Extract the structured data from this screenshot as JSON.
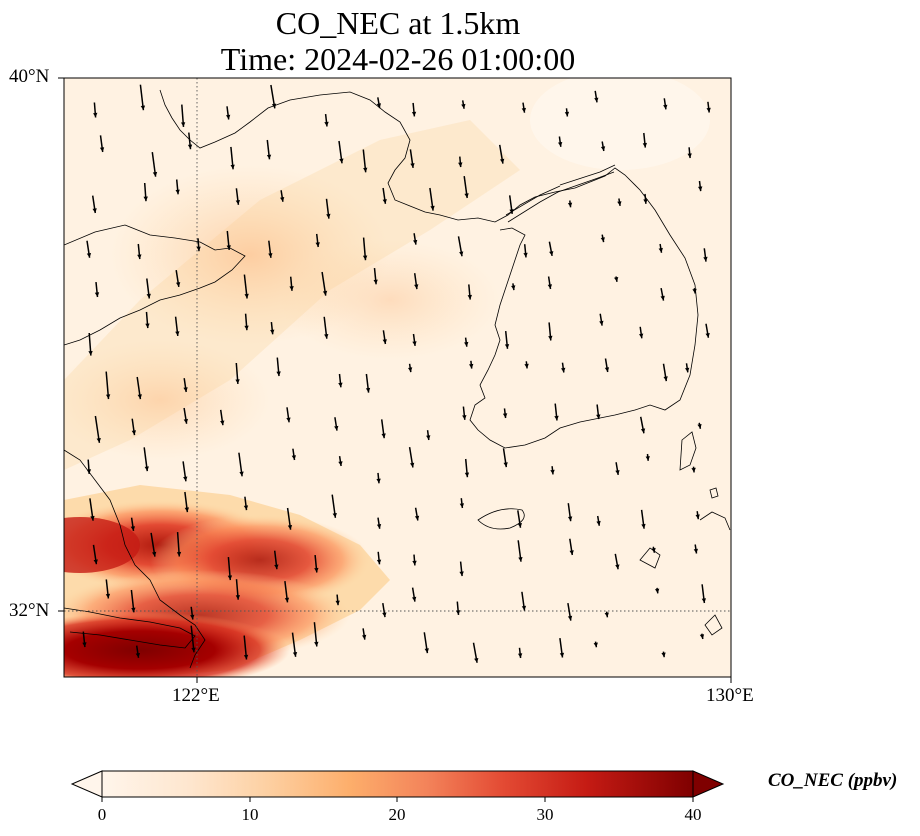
{
  "title_line1": "CO_NEC at 1.5km",
  "title_line2": "Time: 2024-02-26 01:00:00",
  "map": {
    "lon_range": [
      120,
      130
    ],
    "lat_range": [
      31,
      40
    ],
    "lat_labels": [
      "40°N",
      "32°N"
    ],
    "lon_labels": [
      "122°E",
      "130°E"
    ],
    "gridlines": {
      "lons": [
        122
      ],
      "lats": [
        32
      ],
      "style": "dotted"
    },
    "coastlines": true,
    "wind_vectors": true
  },
  "colorbar": {
    "label": "CO_NEC (ppbv)",
    "ticks": [
      "0",
      "10",
      "20",
      "30",
      "40"
    ],
    "range": [
      0,
      40
    ],
    "extend": "both",
    "colormap": [
      "#fff5eb",
      "#fee6ce",
      "#fdd0a2",
      "#fdae6b",
      "#fd8d3c",
      "#f16913",
      "#d94801",
      "#a63603",
      "#7f2704"
    ]
  },
  "colors": {
    "background": "#fff4e6",
    "coast": "#000000",
    "arrow": "#000000"
  }
}
